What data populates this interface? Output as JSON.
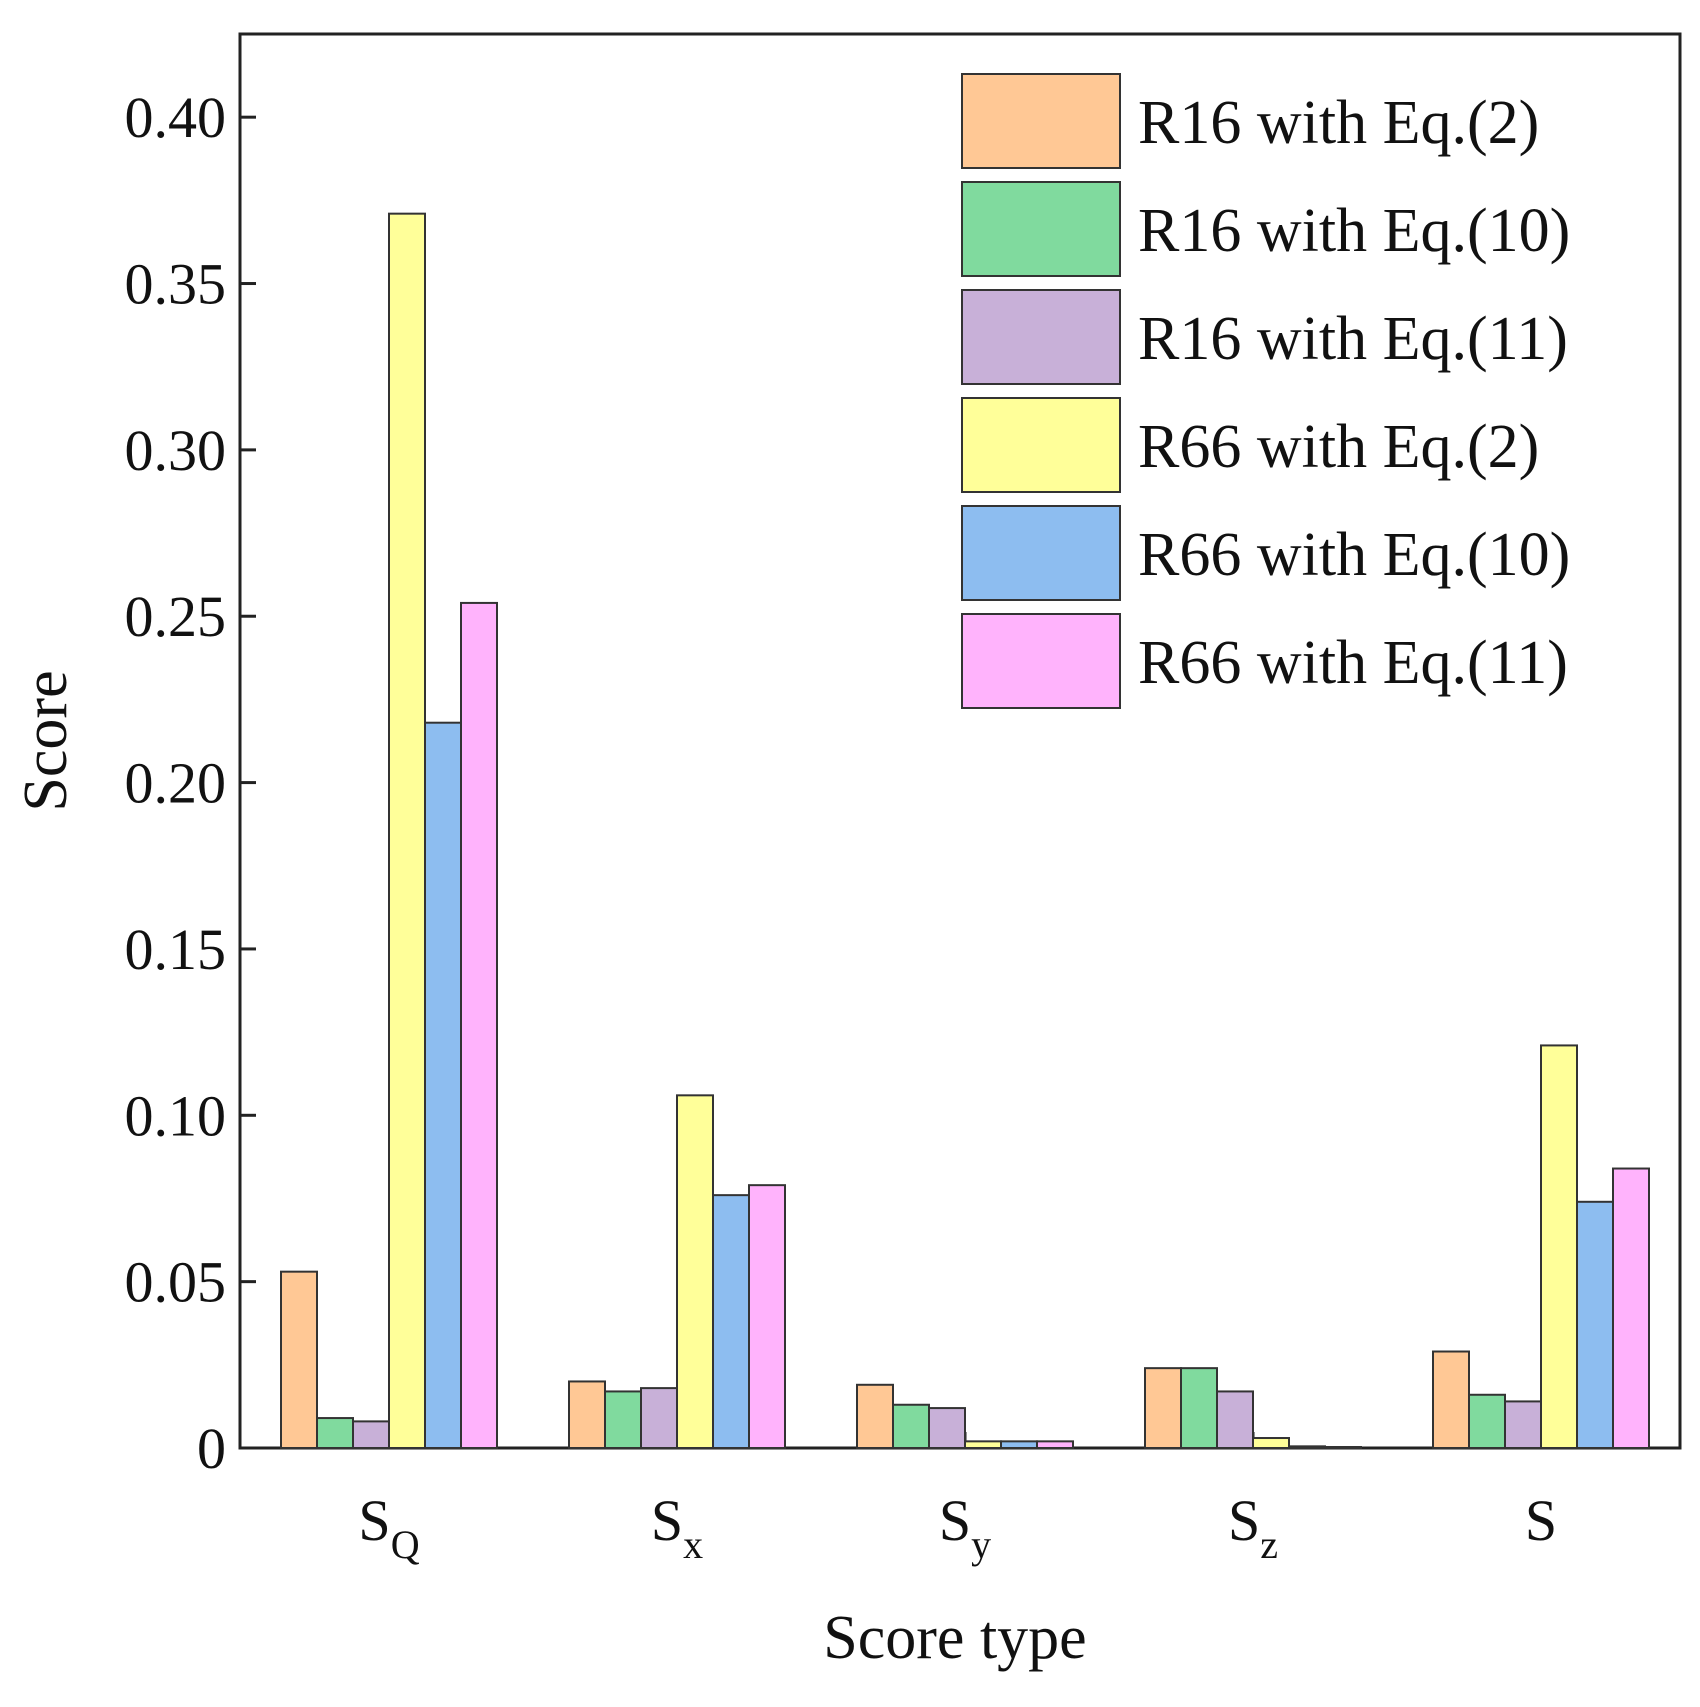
{
  "chart_data": {
    "type": "bar",
    "title": "",
    "xlabel": "Score type",
    "ylabel": "Score",
    "ylim": [
      0,
      0.425
    ],
    "yticks": [
      {
        "value": 0,
        "label": "0"
      },
      {
        "value": 0.05,
        "label": "0.05"
      },
      {
        "value": 0.1,
        "label": "0.10"
      },
      {
        "value": 0.15,
        "label": "0.15"
      },
      {
        "value": 0.2,
        "label": "0.20"
      },
      {
        "value": 0.25,
        "label": "0.25"
      },
      {
        "value": 0.3,
        "label": "0.30"
      },
      {
        "value": 0.35,
        "label": "0.35"
      },
      {
        "value": 0.4,
        "label": "0.40"
      }
    ],
    "categories": [
      {
        "main": "S",
        "sub": "Q"
      },
      {
        "main": "S",
        "sub": "x"
      },
      {
        "main": "S",
        "sub": "y"
      },
      {
        "main": "S",
        "sub": "z"
      },
      {
        "main": "S",
        "sub": ""
      }
    ],
    "legend_position": "top-right",
    "series": [
      {
        "name": "R16 with Eq.(2)",
        "color": "#FFC895",
        "values": [
          0.053,
          0.02,
          0.019,
          0.024,
          0.029
        ]
      },
      {
        "name": "R16 with Eq.(10)",
        "color": "#80DA9E",
        "values": [
          0.009,
          0.017,
          0.013,
          0.024,
          0.016
        ]
      },
      {
        "name": "R16 with Eq.(11)",
        "color": "#C8B0D8",
        "values": [
          0.008,
          0.018,
          0.012,
          0.017,
          0.014
        ]
      },
      {
        "name": "R66 with Eq.(2)",
        "color": "#FFFF99",
        "values": [
          0.371,
          0.106,
          0.002,
          0.003,
          0.121
        ]
      },
      {
        "name": "R66 with Eq.(10)",
        "color": "#8DBDF0",
        "values": [
          0.218,
          0.076,
          0.002,
          0.0005,
          0.074
        ]
      },
      {
        "name": "R66 with Eq.(11)",
        "color": "#FFB3FC",
        "values": [
          0.254,
          0.079,
          0.002,
          0.0003,
          0.084
        ]
      }
    ]
  }
}
